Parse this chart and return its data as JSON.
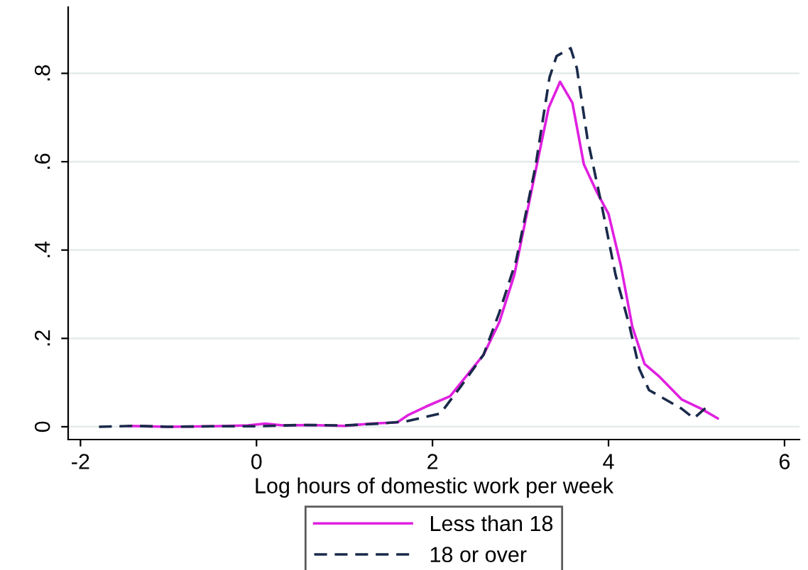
{
  "chart_data": {
    "type": "line",
    "xlabel": "Log hours of domestic work per week",
    "xlim": [
      -2.14,
      6.17
    ],
    "ylim": [
      -0.029,
      0.95
    ],
    "xticks": [
      -2,
      0,
      2,
      4,
      6
    ],
    "yticks": [
      0,
      {
        "value": 0.2,
        "label": ".2"
      },
      {
        "value": 0.4,
        "label": ".4"
      },
      {
        "value": 0.6,
        "label": ".6"
      },
      {
        "value": 0.8,
        "label": ".8"
      }
    ],
    "grid": "y",
    "legend": "bottom",
    "series": [
      {
        "name": "Less than 18",
        "color": "#e020e0",
        "line_style": "solid",
        "x": [
          -1.45,
          -1.0,
          -0.5,
          -0.1,
          0.1,
          0.3,
          0.6,
          1.0,
          1.3,
          1.6,
          1.72,
          1.93,
          2.2,
          2.58,
          2.76,
          2.93,
          3.17,
          3.32,
          3.45,
          3.59,
          3.72,
          3.87,
          4.0,
          4.14,
          4.27,
          4.41,
          4.57,
          4.83,
          5.05,
          5.24
        ],
        "values": [
          0.002,
          0,
          0.001,
          0.003,
          0.007,
          0.003,
          0.004,
          0.002,
          0.007,
          0.01,
          0.026,
          0.046,
          0.069,
          0.163,
          0.237,
          0.344,
          0.578,
          0.722,
          0.781,
          0.733,
          0.594,
          0.53,
          0.482,
          0.365,
          0.227,
          0.142,
          0.115,
          0.062,
          0.041,
          0.019
        ]
      },
      {
        "name": "18 or over",
        "color": "#1a2a4a",
        "line_style": "dashed",
        "x": [
          -1.79,
          -1.4,
          -1.0,
          -0.5,
          0,
          0.5,
          1.0,
          1.4,
          1.7,
          2.09,
          2.31,
          2.58,
          2.76,
          2.95,
          3.17,
          3.33,
          3.41,
          3.57,
          3.64,
          3.76,
          3.92,
          4.08,
          4.24,
          4.35,
          4.46,
          4.83,
          4.97,
          5.1
        ],
        "values": [
          0,
          0.002,
          0,
          0.001,
          0.001,
          0.004,
          0.003,
          0.007,
          0.012,
          0.03,
          0.088,
          0.163,
          0.259,
          0.376,
          0.589,
          0.791,
          0.839,
          0.857,
          0.812,
          0.653,
          0.504,
          0.344,
          0.227,
          0.131,
          0.083,
          0.041,
          0.019,
          0.042
        ]
      }
    ]
  }
}
